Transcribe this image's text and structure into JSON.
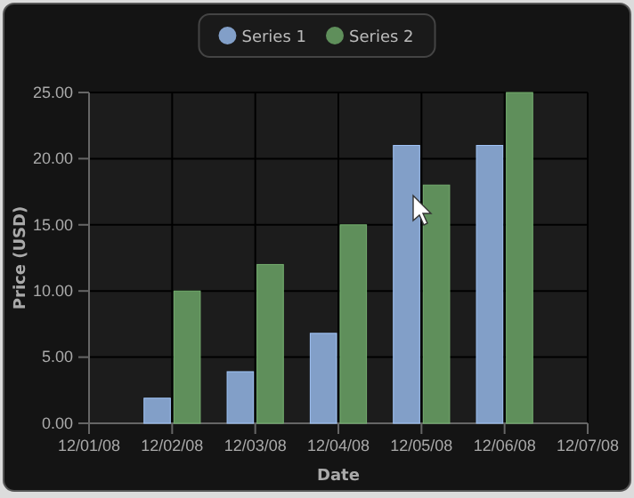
{
  "chart_data": {
    "type": "bar",
    "xlabel": "Date",
    "ylabel": "Price (USD)",
    "x": [
      "--12-02",
      "--12-03",
      "--12-04",
      "--12-05",
      "--12-06"
    ],
    "series": [
      {
        "name": "Series 1",
        "color": "#829fc8",
        "values": [
          1.9,
          3.9,
          6.8,
          21,
          21
        ]
      },
      {
        "name": "Series 2",
        "color": "#5f8f5b",
        "values": [
          10,
          12,
          15,
          18,
          25
        ]
      }
    ],
    "xlim": [
      "--12-01",
      "--12-07"
    ],
    "xticks": [
      {
        "value": "--12-01",
        "label": "12/01/08"
      },
      {
        "value": "--12-02",
        "label": "12/02/08"
      },
      {
        "value": "--12-03",
        "label": "12/03/08"
      },
      {
        "value": "--12-04",
        "label": "12/04/08"
      },
      {
        "value": "--12-05",
        "label": "12/05/08"
      },
      {
        "value": "--12-06",
        "label": "12/06/08"
      },
      {
        "value": "--12-07",
        "label": "12/07/08"
      }
    ],
    "ylim": [
      0,
      25
    ],
    "yticks": [
      {
        "value": 0,
        "label": "0.00"
      },
      {
        "value": 5,
        "label": "5.00"
      },
      {
        "value": 10,
        "label": "10.00"
      },
      {
        "value": 15,
        "label": "15.00"
      },
      {
        "value": 20,
        "label": "20.00"
      },
      {
        "value": 25,
        "label": "25.00"
      }
    ],
    "grid": true,
    "legend": "top"
  }
}
